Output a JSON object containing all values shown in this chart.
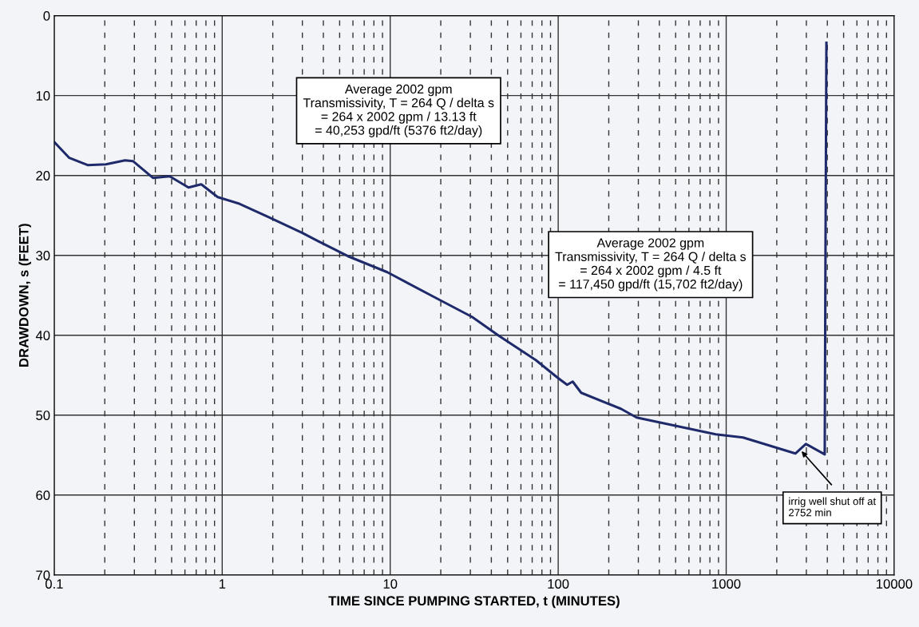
{
  "chart_data": {
    "type": "line",
    "xlabel": "TIME SINCE PUMPING STARTED, t (MINUTES)",
    "ylabel": "DRAWDOWN, s (FEET)",
    "log": "x",
    "xlim": [
      0.1,
      10000
    ],
    "xticks": [
      0.1,
      1,
      10,
      100,
      1000,
      10000
    ],
    "ylim": [
      70,
      0
    ],
    "yticks": [
      0,
      10,
      20,
      30,
      40,
      50,
      60,
      70
    ],
    "grid": true,
    "marker": "none",
    "line_style": "solid",
    "series": [
      {
        "color": "#1f2a6b",
        "x": [
          0.1,
          0.123,
          0.158,
          0.203,
          0.264,
          0.294,
          0.387,
          0.487,
          0.63,
          0.75,
          0.94,
          1.25,
          1.88,
          3.0,
          3.7,
          5.6,
          9.6,
          18.6,
          30.7,
          44.6,
          73.5,
          99,
          113,
          122,
          137,
          236,
          293,
          866,
          1260,
          2580,
          2980,
          3860,
          3900,
          3950
        ],
        "values": [
          15.8,
          17.8,
          18.7,
          18.6,
          18.1,
          18.2,
          20.3,
          20.1,
          21.5,
          21.1,
          22.7,
          23.5,
          25.2,
          27.2,
          28.2,
          30.1,
          32.1,
          35.3,
          37.7,
          40.1,
          43.1,
          45.3,
          46.2,
          45.8,
          47.2,
          49.2,
          50.3,
          52.4,
          52.8,
          54.8,
          53.6,
          54.9,
          30,
          3.4
        ]
      }
    ],
    "annotations": [
      "Average 2002 gpm\nTransmissivity, T = 264 Q / delta s\n= 264 x 2002 gpm / 13.13 ft\n= 40,253 gpd/ft (5376 ft2/day)",
      "Average 2002 gpm\nTransmissivity, T = 264 Q / delta s\n= 264 x 2002 gpm / 4.5 ft\n= 117,450 gpd/ft (15,702 ft2/day)",
      {
        "text": "irrig well shut off at\n2752 min",
        "x": 2752,
        "y": 54.3
      }
    ]
  }
}
